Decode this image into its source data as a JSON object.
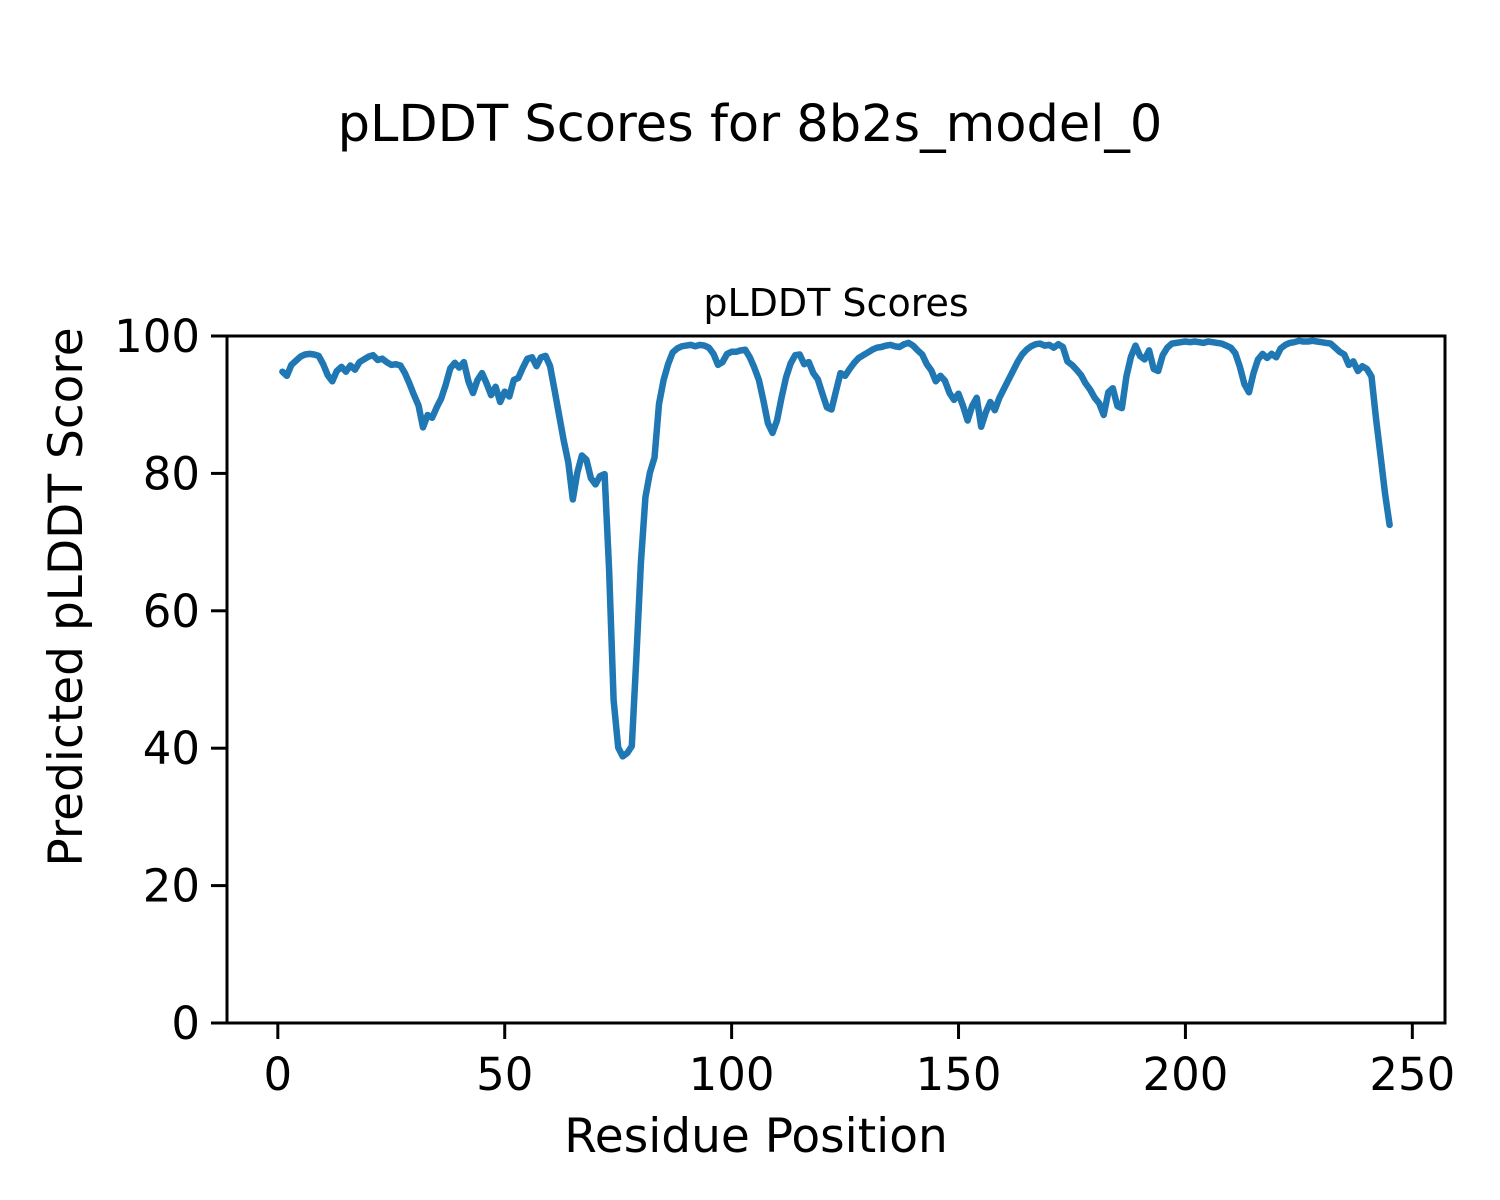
{
  "figure": {
    "suptitle": "pLDDT Scores for 8b2s_model_0"
  },
  "chart_data": {
    "type": "line",
    "title": "pLDDT Scores",
    "xlabel": "Residue Position",
    "ylabel": "Predicted pLDDT Score",
    "xlim": [
      -11.2,
      257.2
    ],
    "ylim": [
      0,
      100
    ],
    "x_ticks": [
      0,
      50,
      100,
      150,
      200,
      250
    ],
    "y_ticks": [
      0,
      20,
      40,
      60,
      80,
      100
    ],
    "grid": false,
    "legend_position": "none",
    "line_color": "#1f77b4",
    "series": [
      {
        "name": "pLDDT",
        "x": [
          1,
          2,
          3,
          4,
          5,
          6,
          7,
          8,
          9,
          10,
          11,
          12,
          13,
          14,
          15,
          16,
          17,
          18,
          19,
          20,
          21,
          22,
          23,
          24,
          25,
          26,
          27,
          28,
          29,
          30,
          31,
          32,
          33,
          34,
          35,
          36,
          37,
          38,
          39,
          40,
          41,
          42,
          43,
          44,
          45,
          46,
          47,
          48,
          49,
          50,
          51,
          52,
          53,
          54,
          55,
          56,
          57,
          58,
          59,
          60,
          61,
          62,
          63,
          64,
          65,
          66,
          67,
          68,
          69,
          70,
          71,
          72,
          73,
          74,
          75,
          76,
          77,
          78,
          79,
          80,
          81,
          82,
          83,
          84,
          85,
          86,
          87,
          88,
          89,
          90,
          91,
          92,
          93,
          94,
          95,
          96,
          97,
          98,
          99,
          100,
          101,
          102,
          103,
          104,
          105,
          106,
          107,
          108,
          109,
          110,
          111,
          112,
          113,
          114,
          115,
          116,
          117,
          118,
          119,
          120,
          121,
          122,
          123,
          124,
          125,
          126,
          127,
          128,
          129,
          130,
          131,
          132,
          133,
          134,
          135,
          136,
          137,
          138,
          139,
          140,
          141,
          142,
          143,
          144,
          145,
          146,
          147,
          148,
          149,
          150,
          151,
          152,
          153,
          154,
          155,
          156,
          157,
          158,
          159,
          160,
          161,
          162,
          163,
          164,
          165,
          166,
          167,
          168,
          169,
          170,
          171,
          172,
          173,
          174,
          175,
          176,
          177,
          178,
          179,
          180,
          181,
          182,
          183,
          184,
          185,
          186,
          187,
          188,
          189,
          190,
          191,
          192,
          193,
          194,
          195,
          196,
          197,
          198,
          199,
          200,
          201,
          202,
          203,
          204,
          205,
          206,
          207,
          208,
          209,
          210,
          211,
          212,
          213,
          214,
          215,
          216,
          217,
          218,
          219,
          220,
          221,
          222,
          223,
          224,
          225,
          226,
          227,
          228,
          229,
          230,
          231,
          232,
          233,
          234,
          235,
          236,
          237,
          238,
          239,
          240,
          241,
          242,
          243,
          244,
          245
        ],
        "y": [
          94.8,
          94.2,
          95.8,
          96.4,
          97.0,
          97.3,
          97.4,
          97.3,
          97.1,
          95.9,
          94.3,
          93.4,
          94.9,
          95.5,
          94.8,
          95.7,
          95.1,
          96.2,
          96.6,
          97.0,
          97.2,
          96.5,
          96.7,
          96.2,
          95.8,
          95.9,
          95.7,
          94.6,
          93.1,
          91.4,
          89.9,
          86.7,
          88.5,
          88.1,
          89.6,
          90.9,
          92.9,
          95.3,
          96.1,
          95.4,
          96.2,
          93.4,
          91.7,
          93.6,
          94.6,
          93.1,
          91.4,
          92.6,
          90.4,
          91.9,
          91.2,
          93.6,
          93.9,
          95.4,
          96.7,
          96.9,
          95.6,
          96.9,
          97.1,
          95.6,
          92.1,
          88.4,
          84.8,
          81.6,
          76.2,
          80.1,
          82.6,
          82.0,
          79.3,
          78.4,
          79.6,
          79.9,
          66.0,
          47.0,
          40.1,
          38.8,
          39.3,
          40.3,
          53.0,
          67.0,
          76.5,
          80.1,
          82.3,
          90.1,
          93.6,
          95.9,
          97.6,
          98.2,
          98.5,
          98.6,
          98.7,
          98.5,
          98.7,
          98.6,
          98.3,
          97.4,
          95.8,
          96.2,
          97.4,
          97.7,
          97.7,
          97.9,
          98.0,
          96.9,
          95.4,
          93.6,
          90.6,
          87.3,
          85.9,
          87.7,
          91.0,
          94.0,
          96.0,
          97.2,
          97.3,
          95.9,
          96.2,
          94.6,
          93.7,
          91.6,
          89.6,
          89.3,
          92.0,
          94.6,
          94.2,
          95.2,
          96.1,
          96.8,
          97.2,
          97.6,
          98.0,
          98.3,
          98.4,
          98.6,
          98.7,
          98.5,
          98.4,
          98.8,
          99.0,
          98.6,
          97.9,
          97.3,
          95.9,
          95.0,
          93.4,
          94.2,
          93.5,
          91.7,
          90.7,
          91.6,
          89.8,
          87.7,
          89.8,
          91.0,
          86.8,
          88.9,
          90.4,
          89.2,
          91.0,
          92.3,
          93.6,
          94.9,
          96.2,
          97.3,
          98.0,
          98.5,
          98.8,
          98.9,
          98.6,
          98.7,
          98.3,
          98.8,
          98.4,
          96.3,
          95.8,
          95.1,
          94.3,
          93.1,
          92.2,
          91.0,
          90.2,
          88.5,
          91.8,
          92.4,
          89.8,
          89.5,
          94.1,
          97.0,
          98.6,
          97.1,
          96.6,
          97.9,
          95.2,
          94.9,
          97.2,
          98.3,
          98.9,
          99.0,
          99.1,
          99.2,
          99.1,
          99.2,
          99.1,
          99.0,
          99.2,
          99.1,
          99.0,
          98.9,
          98.6,
          98.3,
          97.5,
          95.5,
          93.0,
          91.8,
          94.6,
          96.6,
          97.4,
          96.8,
          97.4,
          96.9,
          98.2,
          98.7,
          99.0,
          99.1,
          99.3,
          99.2,
          99.2,
          99.3,
          99.2,
          99.1,
          99.0,
          98.9,
          98.3,
          97.7,
          97.3,
          95.8,
          96.3,
          94.9,
          95.6,
          95.2,
          94.1,
          88.0,
          82.5,
          77.0,
          72.5
        ]
      }
    ]
  }
}
